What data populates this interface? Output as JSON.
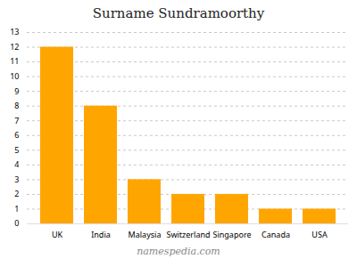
{
  "chart_data": {
    "type": "bar",
    "title": "Surname Sundramoorthy",
    "caption": "namespedia.com",
    "categories": [
      "UK",
      "India",
      "Malaysia",
      "Switzerland",
      "Singapore",
      "Canada",
      "USA"
    ],
    "values": [
      12,
      8,
      3,
      2,
      2,
      1,
      1
    ],
    "color": "#FFA500",
    "ylim": [
      0,
      13
    ],
    "yticks": [
      0,
      1,
      2,
      3,
      4,
      5,
      6,
      7,
      8,
      9,
      10,
      11,
      12,
      13
    ],
    "grid": true
  }
}
